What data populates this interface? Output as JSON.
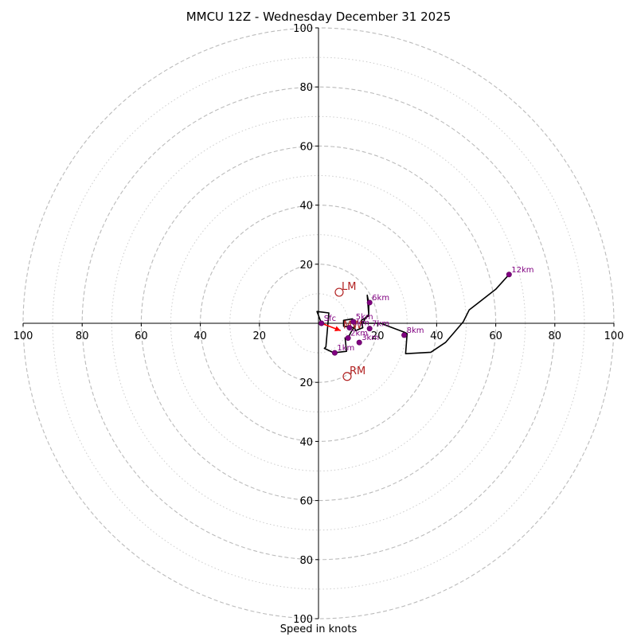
{
  "title": "MMCU 12Z - Wednesday December 31 2025",
  "xlabel": "Speed in knots",
  "chart_data": {
    "type": "hodograph",
    "title": "MMCU 12Z - Wednesday December 31 2025",
    "xlabel": "Speed in knots",
    "range": [
      -100,
      100
    ],
    "major_rings": [
      20,
      40,
      60,
      80,
      100
    ],
    "minor_rings": [
      10,
      30,
      50,
      70,
      90
    ],
    "x_ticks": [
      "100",
      "80",
      "60",
      "40",
      "20",
      "20",
      "40",
      "60",
      "80",
      "100"
    ],
    "x_tick_values": [
      -100,
      -80,
      -60,
      -40,
      -20,
      20,
      40,
      60,
      80,
      100
    ],
    "y_ticks": [
      "100",
      "80",
      "60",
      "40",
      "20",
      "20",
      "40",
      "60",
      "80",
      "100"
    ],
    "y_tick_values": [
      100,
      80,
      60,
      40,
      20,
      -20,
      -40,
      -60,
      -80,
      -100
    ],
    "trace": [
      [
        1,
        0
      ],
      [
        -0.5,
        4
      ],
      [
        3.5,
        3.5
      ],
      [
        2.5,
        -8
      ],
      [
        2,
        -8.5
      ],
      [
        5.2,
        -10
      ],
      [
        9.5,
        -9.5
      ],
      [
        9,
        -5
      ],
      [
        10,
        -5
      ],
      [
        11,
        -3
      ],
      [
        12,
        -1.5
      ],
      [
        8.5,
        -1
      ],
      [
        8.5,
        1
      ],
      [
        11.5,
        1.5
      ],
      [
        12,
        -0.5
      ],
      [
        12.5,
        -2.5
      ],
      [
        15,
        -1.5
      ],
      [
        14.5,
        1
      ],
      [
        17,
        2.5
      ],
      [
        17,
        7
      ],
      [
        16.5,
        9.5
      ],
      [
        17,
        3
      ],
      [
        16,
        2
      ],
      [
        15,
        0
      ],
      [
        21,
        0
      ],
      [
        29,
        -3
      ],
      [
        30,
        -3.5
      ],
      [
        29.5,
        -10.3
      ],
      [
        38,
        -9.8
      ],
      [
        43,
        -6.5
      ],
      [
        46,
        -3
      ],
      [
        49,
        0.5
      ],
      [
        51,
        4.5
      ],
      [
        60,
        11.5
      ],
      [
        64.5,
        16.5
      ]
    ],
    "height_markers": [
      {
        "label": "Sfc",
        "u": 1,
        "v": 0
      },
      {
        "label": "1km",
        "u": 5.5,
        "v": -10
      },
      {
        "label": "2km",
        "u": 10,
        "v": -5
      },
      {
        "label": "3km",
        "u": 13.8,
        "v": -6.5
      },
      {
        "label": "4km",
        "u": 10.5,
        "v": -1.5
      },
      {
        "label": "5km",
        "u": 11.8,
        "v": 0.5
      },
      {
        "label": "6km",
        "u": 17.3,
        "v": 7
      },
      {
        "label": "7km",
        "u": 17.3,
        "v": -1.8
      },
      {
        "label": "8km",
        "u": 29,
        "v": -4
      },
      {
        "label": "12km",
        "u": 64.5,
        "v": 16.5
      }
    ],
    "motion_markers": [
      {
        "label": "LM",
        "u": 7,
        "v": 10.5
      },
      {
        "label": "RM",
        "u": 9.7,
        "v": -18
      },
      {
        "label": "MW",
        "u": 7.5,
        "v": -2.5
      }
    ],
    "colors": {
      "trace": "#000000",
      "height_marker": "#800080",
      "motion_marker": "#b22222",
      "shear_arrow": "#ff0000",
      "ring": "#bbbbbb"
    }
  }
}
